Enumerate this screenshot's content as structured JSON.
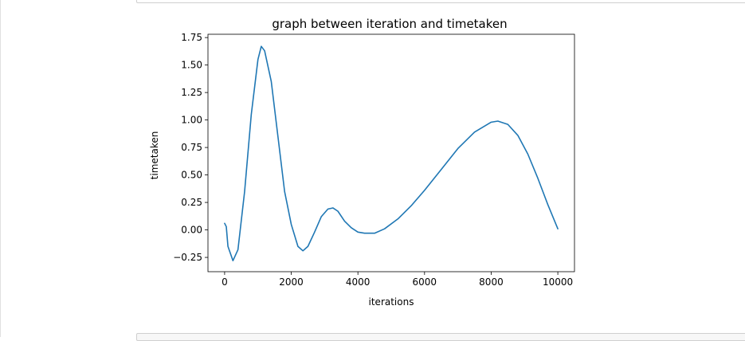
{
  "chart_data": {
    "type": "line",
    "title": "graph between iteration and timetaken",
    "xlabel": "iterations",
    "ylabel": "timetaken",
    "xlim": [
      -500,
      10500
    ],
    "ylim": [
      -0.38,
      1.78
    ],
    "xticks": [
      0,
      2000,
      4000,
      6000,
      8000,
      10000
    ],
    "xtick_labels": [
      "0",
      "2000",
      "4000",
      "6000",
      "8000",
      "10000"
    ],
    "yticks": [
      -0.25,
      0,
      0.25,
      0.5,
      0.75,
      1.0,
      1.25,
      1.5,
      1.75
    ],
    "ytick_labels": [
      "−0.25",
      "0.00",
      "0.25",
      "0.50",
      "0.75",
      "1.00",
      "1.25",
      "1.50",
      "1.75"
    ],
    "grid": false,
    "series": [
      {
        "color": "#1f77b4",
        "x": [
          0,
          50,
          100,
          250,
          400,
          600,
          800,
          1000,
          1100,
          1200,
          1400,
          1600,
          1800,
          2000,
          2200,
          2350,
          2500,
          2700,
          2900,
          3100,
          3250,
          3400,
          3600,
          3800,
          4000,
          4200,
          4500,
          4800,
          5200,
          5600,
          6000,
          6500,
          7000,
          7500,
          8000,
          8200,
          8500,
          8800,
          9100,
          9400,
          9700,
          10000
        ],
        "y": [
          0.06,
          0.03,
          -0.15,
          -0.28,
          -0.18,
          0.35,
          1.05,
          1.55,
          1.67,
          1.63,
          1.35,
          0.85,
          0.35,
          0.05,
          -0.15,
          -0.19,
          -0.15,
          -0.02,
          0.12,
          0.19,
          0.2,
          0.17,
          0.08,
          0.02,
          -0.02,
          -0.03,
          -0.03,
          0.01,
          0.1,
          0.22,
          0.36,
          0.55,
          0.74,
          0.89,
          0.98,
          0.99,
          0.96,
          0.86,
          0.69,
          0.47,
          0.23,
          0.01
        ]
      }
    ]
  }
}
